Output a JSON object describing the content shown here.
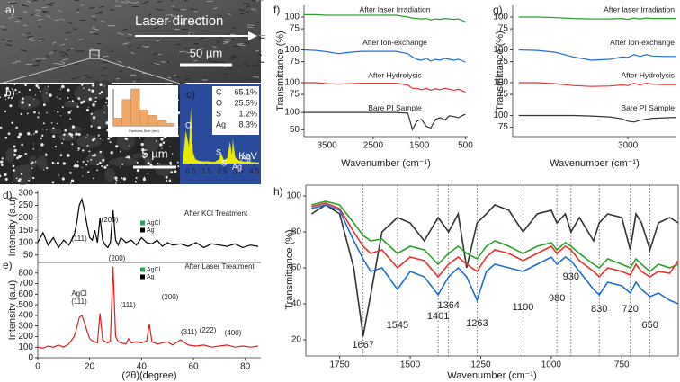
{
  "images": [
    {
      "panel_label": "a)",
      "annotation": "Laser direction",
      "scale_bar": "50 µm"
    },
    {
      "panel_label": "b)",
      "scale_bar": "5 µm"
    }
  ],
  "chart_data": [
    {
      "type": "histogram",
      "bins": [
        0,
        5,
        10,
        15,
        20,
        25,
        30,
        35
      ],
      "counts": [
        3,
        10,
        14,
        6,
        4,
        2,
        1
      ],
      "color": "#f0a868",
      "xlabel": "Particles Size (nm)"
    },
    {
      "type": "area",
      "panel_label": "c)",
      "color": "#e8e800",
      "x": [
        0,
        0.2,
        0.4,
        0.52,
        0.65,
        0.8,
        1.0,
        1.3,
        1.6,
        2.0,
        2.3,
        2.4,
        2.6,
        2.8,
        2.98,
        3.1,
        3.15,
        3.3,
        3.5,
        3.8,
        4.2,
        4.8
      ],
      "values": [
        0,
        60,
        30,
        100,
        20,
        8,
        5,
        4,
        4,
        3,
        8,
        20,
        6,
        10,
        40,
        15,
        45,
        12,
        6,
        4,
        3,
        2
      ],
      "xlim": [
        0,
        4.8
      ],
      "ylim": [
        0,
        120
      ],
      "xticks": [
        0.5,
        1.5,
        2.5,
        3.5,
        4.5
      ],
      "xlabel": "KeV",
      "peak_labels": [
        "O",
        "S",
        "S",
        "Ag",
        "Ag"
      ],
      "table": {
        "categories": [
          "C",
          "O",
          "S",
          "Ag"
        ],
        "values": [
          65.1,
          25.5,
          1.2,
          8.3
        ],
        "value_labels": [
          "65.1%",
          "25.5%",
          "1.2%",
          "8.3%"
        ]
      }
    },
    {
      "type": "line",
      "panel_label": "d)",
      "title": "After KCl Treatment",
      "ylabel": "Intensity (a.u)",
      "x": [
        0,
        2,
        4,
        6,
        8,
        10,
        12,
        14,
        15,
        16,
        17,
        18,
        19,
        20,
        21,
        22,
        23,
        24,
        25,
        26,
        27,
        28,
        29,
        30,
        31,
        32,
        34,
        36,
        38,
        40,
        42,
        44,
        46,
        48,
        50,
        52,
        55,
        58,
        61,
        64,
        67,
        70,
        73,
        76,
        79,
        82,
        85
      ],
      "series": [
        {
          "color": "#000000",
          "values": [
            100,
            140,
            90,
            120,
            80,
            110,
            90,
            130,
            180,
            250,
            275,
            230,
            170,
            120,
            110,
            150,
            100,
            200,
            110,
            90,
            80,
            100,
            230,
            110,
            90,
            120,
            100,
            110,
            90,
            120,
            100,
            95,
            110,
            85,
            100,
            90,
            95,
            85,
            100,
            80,
            95,
            90,
            85,
            95,
            80,
            90,
            85
          ]
        }
      ],
      "xlim": [
        0,
        86
      ],
      "ylim": [
        20,
        310
      ],
      "yticks": [
        50,
        100,
        150,
        200,
        250,
        300
      ],
      "legend_entries": [
        {
          "name": "AgCl",
          "color": "#2ca05a"
        },
        {
          "name": "Ag",
          "color": "#000000"
        }
      ],
      "annotations": [
        "(200)",
        "(111)"
      ]
    },
    {
      "type": "line",
      "panel_label": "e)",
      "title": "After Laser Treatment",
      "ylabel": "Intensity (a.u)",
      "xlabel": "(2θ)(degree)",
      "x": [
        0,
        2,
        4,
        6,
        8,
        10,
        12,
        14,
        15,
        16,
        17,
        18,
        19,
        20,
        21,
        22,
        23,
        24,
        25,
        26,
        27,
        28,
        29,
        30,
        31,
        32,
        34,
        35,
        36,
        38,
        40,
        42,
        43,
        44,
        46,
        48,
        50,
        52,
        55,
        58,
        61,
        64,
        67,
        70,
        73,
        76,
        79,
        82,
        85
      ],
      "series": [
        {
          "color": "#e02020",
          "values": [
            100,
            90,
            110,
            100,
            120,
            100,
            130,
            200,
            280,
            380,
            400,
            330,
            250,
            180,
            160,
            150,
            140,
            420,
            170,
            150,
            140,
            160,
            860,
            200,
            150,
            140,
            130,
            180,
            140,
            150,
            140,
            160,
            320,
            150,
            130,
            140,
            150,
            120,
            170,
            120,
            110,
            120,
            100,
            110,
            120,
            100,
            110,
            100,
            110
          ]
        }
      ],
      "xlim": [
        0,
        86
      ],
      "ylim": [
        0,
        900
      ],
      "xticks": [
        0,
        20,
        40,
        60,
        80
      ],
      "yticks": [
        0,
        100,
        200,
        300,
        400,
        500,
        600,
        700,
        800
      ],
      "legend_entries": [
        {
          "name": "AgCl",
          "color": "#2ca05a"
        },
        {
          "name": "Ag",
          "color": "#000000"
        }
      ],
      "annotations": [
        "AgCl",
        "(111)",
        "(200)",
        "(111)",
        "(200)",
        "(311)",
        "(222)",
        "(400)"
      ]
    },
    {
      "type": "line",
      "panel_label": "f)",
      "xlabel": "Wavenumber (cm⁻¹)",
      "ylabel": "Transmittance (%)",
      "x": [
        4000,
        3750,
        3500,
        3250,
        3000,
        2750,
        2500,
        2250,
        2000,
        1750,
        1650,
        1550,
        1450,
        1350,
        1250,
        1150,
        1050,
        950,
        850,
        750,
        650,
        550,
        500
      ],
      "xlim": [
        4000,
        450
      ],
      "xticks": [
        3500,
        2500,
        1500,
        500
      ],
      "series": [
        {
          "name": "After laser Irradiation",
          "color": "#2ca02c",
          "ylim": [
            55,
            125
          ],
          "yticks": [
            75,
            100
          ],
          "values": [
            105,
            105,
            104,
            104,
            104,
            104,
            104,
            104,
            104,
            100,
            98,
            97,
            96,
            97,
            94,
            96,
            95,
            97,
            96,
            95,
            96,
            92,
            90
          ]
        },
        {
          "name": "After Ion-exchange",
          "color": "#1f6fd1",
          "ylim": [
            55,
            125
          ],
          "yticks": [
            75,
            100
          ],
          "values": [
            100,
            99,
            96,
            92,
            95,
            97,
            97,
            97,
            97,
            92,
            85,
            80,
            78,
            82,
            76,
            80,
            78,
            82,
            80,
            78,
            80,
            76,
            74
          ]
        },
        {
          "name": "After Hydrolysis",
          "color": "#e8312f",
          "ylim": [
            55,
            125
          ],
          "yticks": [
            75,
            100
          ],
          "values": [
            100,
            100,
            98,
            97,
            98,
            99,
            99,
            99,
            99,
            95,
            88,
            88,
            85,
            88,
            84,
            87,
            85,
            88,
            86,
            84,
            86,
            82,
            80
          ]
        },
        {
          "name": "Bare PI Sample",
          "color": "#333333",
          "ylim": [
            30,
            125
          ],
          "yticks": [
            50,
            100
          ],
          "values": [
            100,
            100,
            100,
            100,
            100,
            100,
            100,
            100,
            100,
            98,
            50,
            75,
            80,
            60,
            55,
            80,
            85,
            78,
            90,
            88,
            85,
            92,
            95
          ]
        }
      ]
    },
    {
      "type": "line",
      "panel_label": "g)",
      "xlabel": "Wavenumber (cm⁻¹)",
      "ylabel": "Transmittance (%)",
      "x": [
        3900,
        3750,
        3600,
        3450,
        3300,
        3150,
        3050,
        3000,
        2950,
        2900,
        2850,
        2800,
        2700,
        2600
      ],
      "xlim": [
        3950,
        2600
      ],
      "xticks": [
        3000
      ],
      "series": [
        {
          "name": "After laser Irradiation",
          "color": "#2ca02c",
          "ylim": [
            55,
            125
          ],
          "yticks": [
            75,
            100
          ],
          "values": [
            100,
            100,
            99,
            97,
            96,
            96,
            97,
            95,
            98,
            96,
            98,
            97,
            97,
            97
          ]
        },
        {
          "name": "After Ion-exchange",
          "color": "#1f6fd1",
          "ylim": [
            55,
            125
          ],
          "yticks": [
            75,
            100
          ],
          "values": [
            100,
            99,
            95,
            85,
            78,
            80,
            85,
            84,
            90,
            86,
            90,
            87,
            86,
            86
          ]
        },
        {
          "name": "After Hydrolysis",
          "color": "#e8312f",
          "ylim": [
            55,
            125
          ],
          "yticks": [
            75,
            100
          ],
          "values": [
            100,
            100,
            98,
            94,
            92,
            93,
            95,
            94,
            99,
            95,
            99,
            97,
            96,
            96
          ]
        },
        {
          "name": "Bare PI Sample",
          "color": "#333333",
          "ylim": [
            55,
            125
          ],
          "yticks": [
            75,
            100
          ],
          "values": [
            100,
            100,
            100,
            100,
            99,
            97,
            93,
            88,
            86,
            90,
            92,
            94,
            95,
            96
          ]
        }
      ]
    },
    {
      "type": "line",
      "panel_label": "h)",
      "xlabel": "Wavenumber (cm⁻¹)",
      "ylabel": "Transmittance (%)",
      "x": [
        1850,
        1800,
        1750,
        1700,
        1667,
        1640,
        1600,
        1545,
        1500,
        1450,
        1401,
        1364,
        1330,
        1300,
        1263,
        1230,
        1200,
        1150,
        1100,
        1050,
        1000,
        980,
        950,
        930,
        900,
        850,
        830,
        800,
        750,
        720,
        700,
        680,
        650,
        620,
        580,
        550
      ],
      "xlim": [
        1870,
        550
      ],
      "ylim": [
        11,
        106
      ],
      "xticks": [
        1750,
        1500,
        1250,
        1000,
        750
      ],
      "yticks": [
        20,
        40,
        60,
        80,
        100
      ],
      "series": [
        {
          "color": "#333333",
          "values": [
            90,
            95,
            90,
            60,
            22,
            45,
            80,
            88,
            85,
            75,
            88,
            80,
            90,
            60,
            85,
            90,
            95,
            92,
            80,
            90,
            92,
            85,
            90,
            80,
            88,
            75,
            85,
            90,
            88,
            70,
            90,
            85,
            70,
            85,
            88,
            85
          ]
        },
        {
          "color": "#2ca02c",
          "values": [
            95,
            97,
            95,
            85,
            78,
            75,
            76,
            68,
            72,
            70,
            62,
            68,
            72,
            68,
            65,
            72,
            75,
            72,
            68,
            72,
            74,
            70,
            74,
            72,
            68,
            62,
            60,
            65,
            62,
            60,
            65,
            62,
            58,
            62,
            60,
            62
          ]
        },
        {
          "color": "#e8312f",
          "values": [
            94,
            96,
            93,
            80,
            72,
            68,
            70,
            60,
            66,
            64,
            55,
            62,
            66,
            62,
            58,
            66,
            70,
            68,
            64,
            68,
            72,
            68,
            72,
            70,
            64,
            58,
            55,
            60,
            58,
            56,
            62,
            58,
            55,
            58,
            57,
            64
          ]
        },
        {
          "color": "#1f6fd1",
          "values": [
            93,
            95,
            92,
            75,
            65,
            58,
            60,
            48,
            58,
            55,
            45,
            55,
            60,
            55,
            42,
            58,
            62,
            60,
            58,
            62,
            66,
            62,
            66,
            64,
            58,
            48,
            45,
            52,
            50,
            46,
            52,
            48,
            44,
            46,
            42,
            40
          ]
        }
      ],
      "peaks": [
        1667,
        1545,
        1401,
        1364,
        1263,
        1100,
        980,
        930,
        830,
        720,
        650
      ]
    }
  ]
}
